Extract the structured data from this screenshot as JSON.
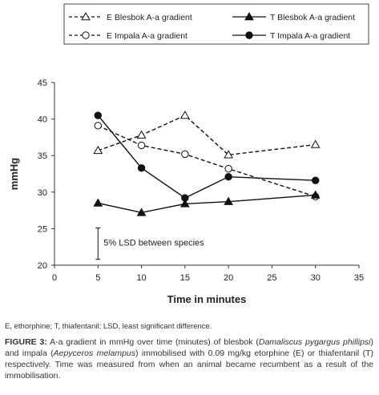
{
  "chart_data": {
    "type": "line",
    "xlabel": "Time in minutes",
    "ylabel": "mmHg",
    "xlim": [
      0,
      35
    ],
    "ylim": [
      20,
      45
    ],
    "xticks": [
      0,
      5,
      10,
      15,
      20,
      25,
      30,
      35
    ],
    "yticks": [
      20,
      25,
      30,
      35,
      40,
      45
    ],
    "legend_position": "top",
    "series": [
      {
        "name": "E Blesbok A-a gradient",
        "marker": "open-triangle",
        "line": "dashed",
        "x": [
          5,
          10,
          15,
          20,
          30
        ],
        "y": [
          35.7,
          37.8,
          40.5,
          35.1,
          36.5
        ]
      },
      {
        "name": "E Impala A-a gradient",
        "marker": "open-circle",
        "line": "dashed",
        "x": [
          5,
          10,
          15,
          20,
          30
        ],
        "y": [
          39.1,
          36.4,
          35.2,
          33.2,
          29.4
        ]
      },
      {
        "name": "T Blesbok A-a gradient",
        "marker": "filled-triangle",
        "line": "solid",
        "x": [
          5,
          10,
          15,
          20,
          30
        ],
        "y": [
          28.5,
          27.2,
          28.4,
          28.7,
          29.6
        ]
      },
      {
        "name": "T Impala A-a gradient",
        "marker": "filled-circle",
        "line": "solid",
        "x": [
          5,
          10,
          15,
          20,
          30
        ],
        "y": [
          40.5,
          33.3,
          29.2,
          32.1,
          31.6
        ]
      }
    ],
    "lsd_bar": {
      "label": "5% LSD between species",
      "x": 5,
      "y_low": 20.8,
      "y_high": 25.1
    }
  },
  "footnote": "E, ethorphine; T, thiafentanil; LSD, least significant difference.",
  "caption": {
    "label": "FIGURE 3:",
    "parts": [
      {
        "text": " A-a gradient in mmHg over time (minutes) of blesbok (",
        "italic": false
      },
      {
        "text": "Damaliscus pygargus phillipsi",
        "italic": true
      },
      {
        "text": ") and impala (",
        "italic": false
      },
      {
        "text": "Aepyceros melampus",
        "italic": true
      },
      {
        "text": ") immobilised with 0.09 mg/kg etorphine (E) or thiafentanil (T) respectively. Time was measured from when an animal became recumbent as a result of the immobilisation.",
        "italic": false
      }
    ]
  }
}
